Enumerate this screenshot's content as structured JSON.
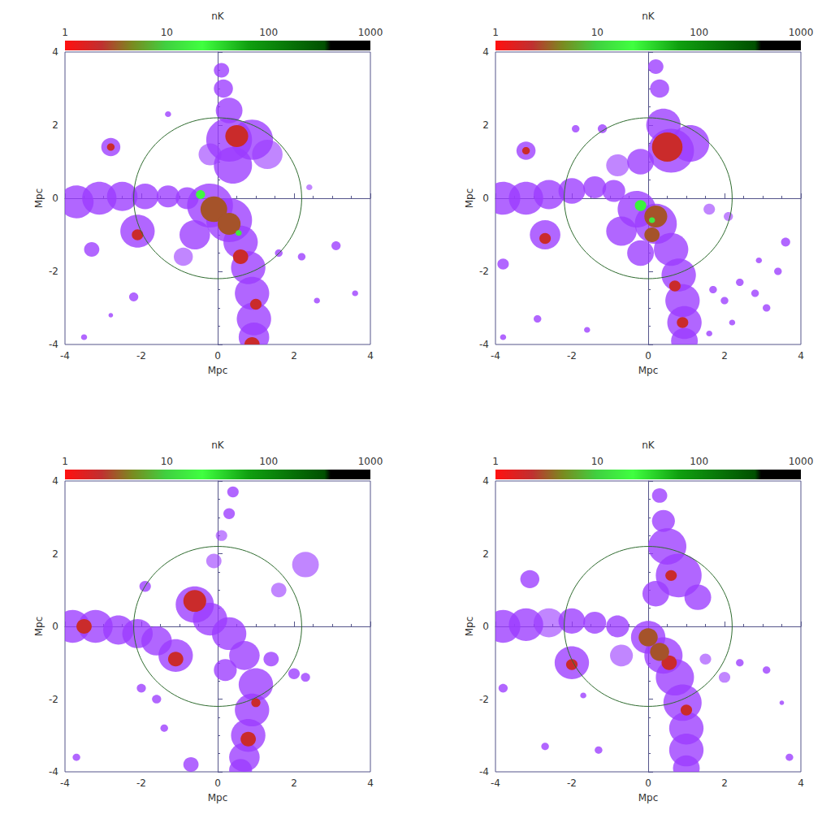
{
  "chart_data": [
    {
      "type": "map",
      "xlabel": "Mpc",
      "ylabel": "Mpc",
      "xlim": [
        -4,
        4
      ],
      "ylim": [
        -4,
        4
      ],
      "xticks": [
        -4,
        -2,
        0,
        2,
        4
      ],
      "yticks": [
        -4,
        -2,
        0,
        2,
        4
      ],
      "colorbar_label": "nK",
      "colorbar_range": [
        1,
        1000
      ],
      "colorbar_ticks": [
        1,
        10,
        100,
        1000
      ],
      "log": true,
      "circle": {
        "x": 0,
        "y": 0,
        "r": 2.2
      },
      "blobs": [
        [
          -3.7,
          -0.1,
          0.45,
          0.6
        ],
        [
          -3.1,
          0.0,
          0.45,
          0.6
        ],
        [
          -2.5,
          0.05,
          0.4,
          0.6
        ],
        [
          -1.9,
          0.05,
          0.35,
          0.6
        ],
        [
          -1.3,
          0.05,
          0.3,
          0.6
        ],
        [
          -0.8,
          0.0,
          0.3,
          0.6
        ],
        [
          -2.1,
          -0.9,
          0.45,
          0.6
        ],
        [
          -3.3,
          -1.4,
          0.2,
          0.6
        ],
        [
          -2.8,
          1.4,
          0.25,
          0.6
        ],
        [
          0.1,
          3.5,
          0.2,
          0.6
        ],
        [
          0.15,
          3.0,
          0.25,
          0.6
        ],
        [
          0.3,
          2.4,
          0.35,
          0.6
        ],
        [
          0.3,
          1.6,
          0.6,
          0.6
        ],
        [
          0.9,
          1.6,
          0.55,
          0.6
        ],
        [
          1.3,
          1.2,
          0.4,
          0.3
        ],
        [
          0.4,
          0.9,
          0.5,
          0.6
        ],
        [
          -0.2,
          1.2,
          0.3,
          0.3
        ],
        [
          -0.2,
          -0.2,
          0.6,
          0.6
        ],
        [
          0.3,
          -0.6,
          0.6,
          0.6
        ],
        [
          -0.6,
          -1.0,
          0.4,
          0.6
        ],
        [
          -0.9,
          -1.6,
          0.25,
          0.3
        ],
        [
          0.6,
          -1.2,
          0.45,
          0.6
        ],
        [
          0.8,
          -1.9,
          0.45,
          0.6
        ],
        [
          0.9,
          -2.6,
          0.45,
          0.6
        ],
        [
          0.95,
          -3.3,
          0.45,
          0.6
        ],
        [
          0.95,
          -3.8,
          0.4,
          0.6
        ],
        [
          1.6,
          -1.5,
          0.1,
          0.6
        ],
        [
          2.2,
          -1.6,
          0.1,
          0.6
        ],
        [
          3.1,
          -1.3,
          0.12,
          0.6
        ],
        [
          2.6,
          -2.8,
          0.08,
          0.6
        ],
        [
          3.6,
          -2.6,
          0.08,
          0.6
        ],
        [
          2.4,
          0.3,
          0.08,
          0.3
        ],
        [
          -2.2,
          -2.7,
          0.12,
          0.6
        ],
        [
          -3.5,
          -3.8,
          0.08,
          0.6
        ],
        [
          -1.3,
          2.3,
          0.08,
          0.6
        ],
        [
          -2.8,
          -3.2,
          0.06,
          0.6
        ],
        [
          -2.1,
          -1.0,
          0.15,
          2
        ],
        [
          -2.8,
          1.4,
          0.1,
          2
        ],
        [
          0.5,
          1.7,
          0.3,
          2
        ],
        [
          -0.1,
          -0.3,
          0.35,
          3
        ],
        [
          0.3,
          -0.7,
          0.3,
          3
        ],
        [
          0.6,
          -1.6,
          0.2,
          2
        ],
        [
          0.9,
          -4.0,
          0.2,
          2
        ],
        [
          1.0,
          -2.9,
          0.15,
          2
        ],
        [
          -0.45,
          0.1,
          0.12,
          20
        ],
        [
          0.55,
          -0.95,
          0.08,
          15
        ]
      ]
    },
    {
      "type": "map",
      "xlabel": "Mpc",
      "ylabel": "Mpc",
      "xlim": [
        -4,
        4
      ],
      "ylim": [
        -4,
        4
      ],
      "xticks": [
        -4,
        -2,
        0,
        2,
        4
      ],
      "yticks": [
        -4,
        -2,
        0,
        2,
        4
      ],
      "colorbar_label": "nK",
      "colorbar_range": [
        1,
        1000
      ],
      "colorbar_ticks": [
        1,
        10,
        100,
        1000
      ],
      "log": true,
      "circle": {
        "x": 0,
        "y": 0,
        "r": 2.2
      },
      "blobs": [
        [
          -3.8,
          0.0,
          0.45,
          0.6
        ],
        [
          -3.2,
          0.0,
          0.45,
          0.6
        ],
        [
          -2.6,
          0.1,
          0.4,
          0.6
        ],
        [
          -2.0,
          0.2,
          0.35,
          0.6
        ],
        [
          -1.4,
          0.3,
          0.3,
          0.6
        ],
        [
          -0.9,
          0.2,
          0.3,
          0.6
        ],
        [
          -2.7,
          -1.0,
          0.4,
          0.6
        ],
        [
          -3.8,
          -1.8,
          0.15,
          0.6
        ],
        [
          -3.2,
          1.3,
          0.25,
          0.6
        ],
        [
          -1.9,
          1.9,
          0.1,
          0.6
        ],
        [
          -1.2,
          1.9,
          0.12,
          0.6
        ],
        [
          0.2,
          3.6,
          0.2,
          0.6
        ],
        [
          0.3,
          3.0,
          0.25,
          0.6
        ],
        [
          0.4,
          2.0,
          0.45,
          0.6
        ],
        [
          0.6,
          1.3,
          0.6,
          0.6
        ],
        [
          1.1,
          1.5,
          0.5,
          0.6
        ],
        [
          -0.2,
          1.0,
          0.35,
          0.6
        ],
        [
          -0.8,
          0.9,
          0.3,
          0.3
        ],
        [
          -0.3,
          -0.3,
          0.5,
          0.6
        ],
        [
          0.2,
          -0.7,
          0.55,
          0.6
        ],
        [
          -0.7,
          -0.9,
          0.4,
          0.6
        ],
        [
          -0.2,
          -1.5,
          0.35,
          0.6
        ],
        [
          0.6,
          -1.4,
          0.45,
          0.6
        ],
        [
          0.8,
          -2.1,
          0.45,
          0.6
        ],
        [
          0.9,
          -2.8,
          0.45,
          0.6
        ],
        [
          0.95,
          -3.4,
          0.45,
          0.6
        ],
        [
          0.95,
          -3.9,
          0.35,
          0.6
        ],
        [
          1.6,
          -0.3,
          0.15,
          0.3
        ],
        [
          2.1,
          -0.5,
          0.12,
          0.3
        ],
        [
          1.7,
          -2.5,
          0.1,
          0.6
        ],
        [
          2.0,
          -2.8,
          0.1,
          0.6
        ],
        [
          2.4,
          -2.3,
          0.1,
          0.6
        ],
        [
          2.8,
          -2.6,
          0.1,
          0.6
        ],
        [
          3.1,
          -3.0,
          0.1,
          0.6
        ],
        [
          2.2,
          -3.4,
          0.08,
          0.6
        ],
        [
          1.6,
          -3.7,
          0.08,
          0.6
        ],
        [
          3.4,
          -2.0,
          0.1,
          0.6
        ],
        [
          3.6,
          -1.2,
          0.12,
          0.6
        ],
        [
          2.9,
          -1.7,
          0.08,
          0.6
        ],
        [
          -2.9,
          -3.3,
          0.1,
          0.6
        ],
        [
          -3.8,
          -3.8,
          0.08,
          0.6
        ],
        [
          -1.6,
          -3.6,
          0.08,
          0.6
        ],
        [
          -2.7,
          -1.1,
          0.15,
          2
        ],
        [
          -3.2,
          1.3,
          0.1,
          2
        ],
        [
          0.5,
          1.4,
          0.4,
          2
        ],
        [
          0.2,
          -0.5,
          0.3,
          3
        ],
        [
          0.1,
          -1.0,
          0.2,
          3
        ],
        [
          0.7,
          -2.4,
          0.15,
          2
        ],
        [
          0.9,
          -3.4,
          0.15,
          2
        ],
        [
          -0.2,
          -0.2,
          0.15,
          25
        ],
        [
          0.1,
          -0.6,
          0.08,
          15
        ]
      ]
    },
    {
      "type": "map",
      "xlabel": "Mpc",
      "ylabel": "Mpc",
      "xlim": [
        -4,
        4
      ],
      "ylim": [
        -4,
        4
      ],
      "xticks": [
        -4,
        -2,
        0,
        2,
        4
      ],
      "yticks": [
        -4,
        -2,
        0,
        2,
        4
      ],
      "colorbar_label": "nK",
      "colorbar_range": [
        1,
        1000
      ],
      "colorbar_ticks": [
        1,
        10,
        100,
        1000
      ],
      "log": true,
      "circle": {
        "x": 0,
        "y": 0,
        "r": 2.2
      },
      "blobs": [
        [
          -3.8,
          0.0,
          0.45,
          0.6
        ],
        [
          -3.2,
          0.0,
          0.45,
          0.6
        ],
        [
          -2.6,
          -0.1,
          0.4,
          0.6
        ],
        [
          -2.1,
          -0.2,
          0.4,
          0.6
        ],
        [
          -1.6,
          -0.4,
          0.4,
          0.6
        ],
        [
          -1.1,
          -0.8,
          0.45,
          0.6
        ],
        [
          -2.0,
          -1.7,
          0.12,
          0.6
        ],
        [
          -1.6,
          -2.0,
          0.12,
          0.6
        ],
        [
          -1.9,
          1.1,
          0.15,
          0.6
        ],
        [
          -3.7,
          -3.6,
          0.1,
          0.6
        ],
        [
          0.4,
          3.7,
          0.15,
          0.6
        ],
        [
          0.3,
          3.1,
          0.15,
          0.6
        ],
        [
          0.1,
          2.5,
          0.15,
          0.3
        ],
        [
          -0.1,
          1.8,
          0.2,
          0.3
        ],
        [
          2.3,
          1.7,
          0.35,
          0.3
        ],
        [
          1.6,
          1.0,
          0.2,
          0.3
        ],
        [
          -0.6,
          0.6,
          0.5,
          0.6
        ],
        [
          -0.2,
          0.2,
          0.45,
          0.6
        ],
        [
          0.3,
          -0.2,
          0.45,
          0.6
        ],
        [
          0.7,
          -0.8,
          0.4,
          0.6
        ],
        [
          0.2,
          -1.2,
          0.3,
          0.6
        ],
        [
          1.0,
          -1.6,
          0.45,
          0.6
        ],
        [
          0.9,
          -2.3,
          0.45,
          0.6
        ],
        [
          0.8,
          -3.0,
          0.45,
          0.6
        ],
        [
          0.7,
          -3.6,
          0.4,
          0.6
        ],
        [
          0.6,
          -3.95,
          0.3,
          0.6
        ],
        [
          1.4,
          -0.9,
          0.2,
          0.6
        ],
        [
          2.0,
          -1.3,
          0.15,
          0.6
        ],
        [
          -0.7,
          -3.8,
          0.2,
          0.6
        ],
        [
          -1.4,
          -2.8,
          0.1,
          0.6
        ],
        [
          2.3,
          -1.4,
          0.12,
          0.6
        ],
        [
          -3.5,
          0.0,
          0.2,
          2
        ],
        [
          -1.1,
          -0.9,
          0.2,
          2
        ],
        [
          -0.6,
          0.7,
          0.3,
          2
        ],
        [
          0.8,
          -3.1,
          0.2,
          2
        ],
        [
          1.0,
          -2.1,
          0.12,
          2
        ]
      ]
    },
    {
      "type": "map",
      "xlabel": "Mpc",
      "ylabel": "Mpc",
      "xlim": [
        -4,
        4
      ],
      "ylim": [
        -4,
        4
      ],
      "xticks": [
        -4,
        -2,
        0,
        2,
        4
      ],
      "yticks": [
        -4,
        -2,
        0,
        2,
        4
      ],
      "colorbar_label": "nK",
      "colorbar_range": [
        1,
        1000
      ],
      "colorbar_ticks": [
        1,
        10,
        100,
        1000
      ],
      "log": true,
      "circle": {
        "x": 0,
        "y": 0,
        "r": 2.2
      },
      "blobs": [
        [
          -3.8,
          0.0,
          0.45,
          0.6
        ],
        [
          -3.2,
          0.05,
          0.45,
          0.6
        ],
        [
          -2.6,
          0.1,
          0.4,
          0.3
        ],
        [
          -2.0,
          0.15,
          0.35,
          0.6
        ],
        [
          -1.4,
          0.1,
          0.3,
          0.6
        ],
        [
          -0.8,
          0.0,
          0.3,
          0.6
        ],
        [
          -2.0,
          -1.0,
          0.45,
          0.6
        ],
        [
          -3.8,
          -1.7,
          0.12,
          0.6
        ],
        [
          -3.1,
          1.3,
          0.25,
          0.6
        ],
        [
          -2.7,
          -3.3,
          0.1,
          0.6
        ],
        [
          -1.3,
          -3.4,
          0.1,
          0.6
        ],
        [
          0.3,
          3.6,
          0.2,
          0.6
        ],
        [
          0.4,
          2.9,
          0.3,
          0.6
        ],
        [
          0.5,
          2.2,
          0.5,
          0.6
        ],
        [
          0.8,
          1.4,
          0.6,
          0.6
        ],
        [
          0.2,
          0.9,
          0.35,
          0.6
        ],
        [
          1.3,
          0.8,
          0.35,
          0.6
        ],
        [
          0.0,
          -0.3,
          0.45,
          0.6
        ],
        [
          0.4,
          -0.8,
          0.5,
          0.6
        ],
        [
          0.7,
          -1.4,
          0.5,
          0.6
        ],
        [
          0.9,
          -2.1,
          0.5,
          0.6
        ],
        [
          1.0,
          -2.8,
          0.45,
          0.6
        ],
        [
          1.0,
          -3.4,
          0.45,
          0.6
        ],
        [
          1.0,
          -3.9,
          0.35,
          0.6
        ],
        [
          -0.7,
          -0.8,
          0.3,
          0.3
        ],
        [
          1.5,
          -0.9,
          0.15,
          0.3
        ],
        [
          2.0,
          -1.4,
          0.15,
          0.3
        ],
        [
          2.4,
          -1.0,
          0.1,
          0.6
        ],
        [
          3.1,
          -1.2,
          0.1,
          0.6
        ],
        [
          3.7,
          -3.6,
          0.1,
          0.6
        ],
        [
          3.5,
          -2.1,
          0.06,
          0.6
        ],
        [
          -1.7,
          -1.9,
          0.08,
          0.6
        ],
        [
          -2.0,
          -1.05,
          0.15,
          2
        ],
        [
          0.0,
          -0.3,
          0.25,
          3
        ],
        [
          0.3,
          -0.7,
          0.25,
          3
        ],
        [
          0.55,
          -1.0,
          0.2,
          2
        ],
        [
          1.0,
          -2.3,
          0.15,
          2
        ],
        [
          0.6,
          1.4,
          0.15,
          2
        ]
      ]
    }
  ]
}
